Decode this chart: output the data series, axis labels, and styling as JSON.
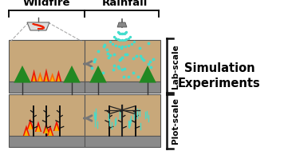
{
  "title_wildfire": "Wildfire",
  "title_rainfall": "Rainfall",
  "label_lab_scale": "Lab-scale",
  "label_plot_scale": "Plot-scale",
  "label_simulation": "Simulation",
  "label_experiments": "Experiments",
  "bg_color": "#ffffff",
  "soil_top_color": "#c8a87a",
  "soil_side_color": "#8a8a8a",
  "box_edge_color": "#555555",
  "fire_red": "#ee1100",
  "fire_orange": "#ff6600",
  "fire_yellow": "#ffcc00",
  "rain_color": "#44ddcc",
  "tree_color": "#111111",
  "green_color": "#228822",
  "arrow_color": "#777777",
  "bracket_color": "#111111",
  "title_fontsize": 9.5,
  "label_fontsize": 7.5,
  "sim_fontsize": 10.5
}
